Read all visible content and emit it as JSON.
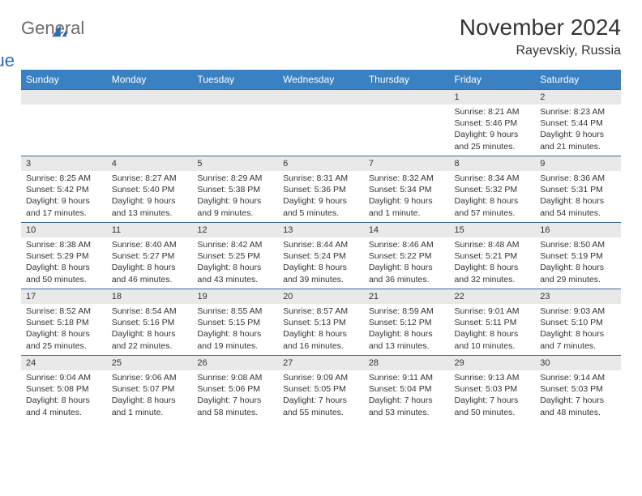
{
  "logo": {
    "text1": "General",
    "text2": "Blue"
  },
  "title": "November 2024",
  "location": "Rayevskiy, Russia",
  "colors": {
    "header_bg": "#3a81c4",
    "header_text": "#ffffff",
    "daynum_bg": "#e9e9e9",
    "border": "#4a7aa8",
    "logo_gray": "#6b6b6b",
    "logo_blue": "#2a6fb5"
  },
  "weekdays": [
    "Sunday",
    "Monday",
    "Tuesday",
    "Wednesday",
    "Thursday",
    "Friday",
    "Saturday"
  ],
  "weeks": [
    [
      null,
      null,
      null,
      null,
      null,
      {
        "n": "1",
        "sr": "8:21 AM",
        "ss": "5:46 PM",
        "dl": "9 hours and 25 minutes."
      },
      {
        "n": "2",
        "sr": "8:23 AM",
        "ss": "5:44 PM",
        "dl": "9 hours and 21 minutes."
      }
    ],
    [
      {
        "n": "3",
        "sr": "8:25 AM",
        "ss": "5:42 PM",
        "dl": "9 hours and 17 minutes."
      },
      {
        "n": "4",
        "sr": "8:27 AM",
        "ss": "5:40 PM",
        "dl": "9 hours and 13 minutes."
      },
      {
        "n": "5",
        "sr": "8:29 AM",
        "ss": "5:38 PM",
        "dl": "9 hours and 9 minutes."
      },
      {
        "n": "6",
        "sr": "8:31 AM",
        "ss": "5:36 PM",
        "dl": "9 hours and 5 minutes."
      },
      {
        "n": "7",
        "sr": "8:32 AM",
        "ss": "5:34 PM",
        "dl": "9 hours and 1 minute."
      },
      {
        "n": "8",
        "sr": "8:34 AM",
        "ss": "5:32 PM",
        "dl": "8 hours and 57 minutes."
      },
      {
        "n": "9",
        "sr": "8:36 AM",
        "ss": "5:31 PM",
        "dl": "8 hours and 54 minutes."
      }
    ],
    [
      {
        "n": "10",
        "sr": "8:38 AM",
        "ss": "5:29 PM",
        "dl": "8 hours and 50 minutes."
      },
      {
        "n": "11",
        "sr": "8:40 AM",
        "ss": "5:27 PM",
        "dl": "8 hours and 46 minutes."
      },
      {
        "n": "12",
        "sr": "8:42 AM",
        "ss": "5:25 PM",
        "dl": "8 hours and 43 minutes."
      },
      {
        "n": "13",
        "sr": "8:44 AM",
        "ss": "5:24 PM",
        "dl": "8 hours and 39 minutes."
      },
      {
        "n": "14",
        "sr": "8:46 AM",
        "ss": "5:22 PM",
        "dl": "8 hours and 36 minutes."
      },
      {
        "n": "15",
        "sr": "8:48 AM",
        "ss": "5:21 PM",
        "dl": "8 hours and 32 minutes."
      },
      {
        "n": "16",
        "sr": "8:50 AM",
        "ss": "5:19 PM",
        "dl": "8 hours and 29 minutes."
      }
    ],
    [
      {
        "n": "17",
        "sr": "8:52 AM",
        "ss": "5:18 PM",
        "dl": "8 hours and 25 minutes."
      },
      {
        "n": "18",
        "sr": "8:54 AM",
        "ss": "5:16 PM",
        "dl": "8 hours and 22 minutes."
      },
      {
        "n": "19",
        "sr": "8:55 AM",
        "ss": "5:15 PM",
        "dl": "8 hours and 19 minutes."
      },
      {
        "n": "20",
        "sr": "8:57 AM",
        "ss": "5:13 PM",
        "dl": "8 hours and 16 minutes."
      },
      {
        "n": "21",
        "sr": "8:59 AM",
        "ss": "5:12 PM",
        "dl": "8 hours and 13 minutes."
      },
      {
        "n": "22",
        "sr": "9:01 AM",
        "ss": "5:11 PM",
        "dl": "8 hours and 10 minutes."
      },
      {
        "n": "23",
        "sr": "9:03 AM",
        "ss": "5:10 PM",
        "dl": "8 hours and 7 minutes."
      }
    ],
    [
      {
        "n": "24",
        "sr": "9:04 AM",
        "ss": "5:08 PM",
        "dl": "8 hours and 4 minutes."
      },
      {
        "n": "25",
        "sr": "9:06 AM",
        "ss": "5:07 PM",
        "dl": "8 hours and 1 minute."
      },
      {
        "n": "26",
        "sr": "9:08 AM",
        "ss": "5:06 PM",
        "dl": "7 hours and 58 minutes."
      },
      {
        "n": "27",
        "sr": "9:09 AM",
        "ss": "5:05 PM",
        "dl": "7 hours and 55 minutes."
      },
      {
        "n": "28",
        "sr": "9:11 AM",
        "ss": "5:04 PM",
        "dl": "7 hours and 53 minutes."
      },
      {
        "n": "29",
        "sr": "9:13 AM",
        "ss": "5:03 PM",
        "dl": "7 hours and 50 minutes."
      },
      {
        "n": "30",
        "sr": "9:14 AM",
        "ss": "5:03 PM",
        "dl": "7 hours and 48 minutes."
      }
    ]
  ],
  "labels": {
    "sunrise": "Sunrise:",
    "sunset": "Sunset:",
    "daylight": "Daylight:"
  }
}
